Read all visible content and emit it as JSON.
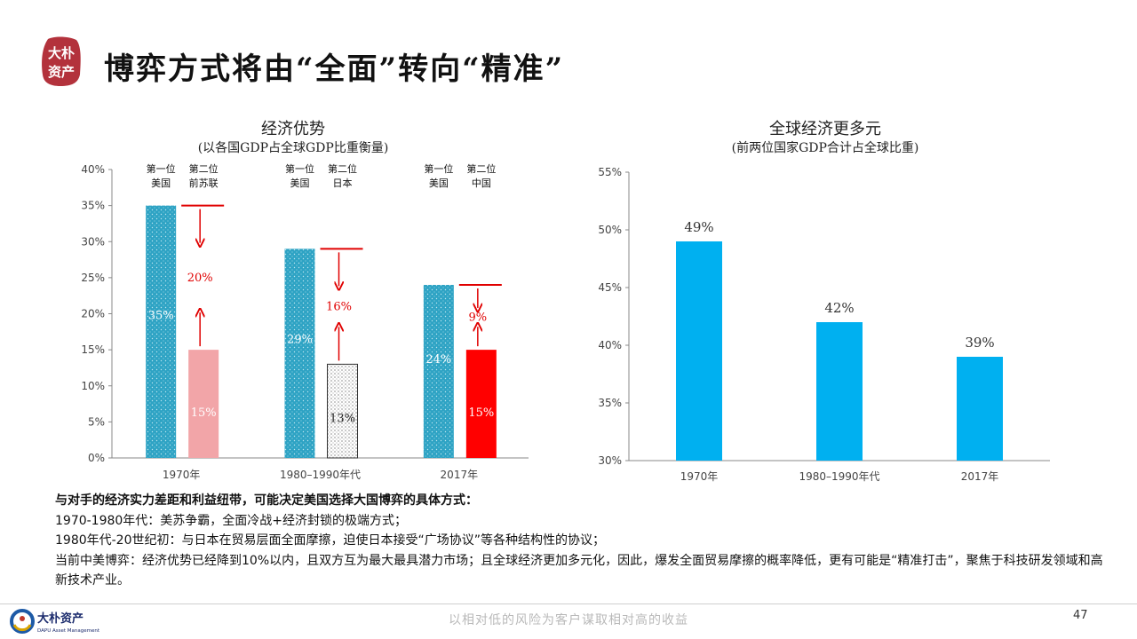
{
  "header": {
    "title": "博弈方式将由“全面”转向“精准”",
    "seal_text": [
      "大朴",
      "资产"
    ]
  },
  "left_chart": {
    "title": "经济优势",
    "subtitle": "(以各国GDP占全球GDP比重衡量)"
  },
  "right_chart": {
    "title": "全球经济更多元",
    "subtitle": "(前两位国家GDP合计占全球比重)"
  },
  "chart_data": [
    {
      "type": "bar",
      "title": "经济优势",
      "subtitle": "(以各国GDP占全球GDP比重衡量)",
      "categories": [
        "1970年",
        "1980–1990年代",
        "2017年"
      ],
      "ylim": [
        0,
        40
      ],
      "yticks": [
        "0%",
        "5%",
        "10%",
        "15%",
        "20%",
        "25%",
        "30%",
        "35%",
        "40%"
      ],
      "series": [
        {
          "name": "第一位",
          "countries": [
            "美国",
            "美国",
            "美国"
          ],
          "values": [
            35,
            29,
            24
          ],
          "labels": [
            "35%",
            "29%",
            "24%"
          ],
          "color": "#2ea3c4"
        },
        {
          "name": "第二位",
          "countries": [
            "前苏联",
            "日本",
            "中国"
          ],
          "values": [
            15,
            13,
            15
          ],
          "labels": [
            "15%",
            "13%",
            "15%"
          ],
          "colors": [
            "#f2a5a8",
            "#ffffff",
            "#ff0000"
          ]
        }
      ],
      "gap_labels": [
        "20%",
        "16%",
        "9%"
      ],
      "grid": false
    },
    {
      "type": "bar",
      "title": "全球经济更多元",
      "subtitle": "(前两位国家GDP合计占全球比重)",
      "categories": [
        "1970年",
        "1980–1990年代",
        "2017年"
      ],
      "values": [
        49,
        42,
        39
      ],
      "labels": [
        "49%",
        "42%",
        "39%"
      ],
      "ylim": [
        30,
        55
      ],
      "yticks": [
        "30%",
        "35%",
        "40%",
        "45%",
        "50%",
        "55%"
      ],
      "color": "#00b0f0",
      "grid": false
    }
  ],
  "body": {
    "lead": "与对手的经济实力差距和利益纽带，可能决定美国选择大国博弈的具体方式：",
    "lines": [
      "1970-1980年代：美苏争霸，全面冷战+经济封锁的极端方式；",
      "1980年代-20世纪初：与日本在贸易层面全面摩擦，迫使日本接受“广场协议”等各种结构性的协议；",
      "当前中美博弈：经济优势已经降到10%以内，且双方互为最大最具潜力市场；且全球经济更加多元化，因此，爆发全面贸易摩擦的概率降低，更有可能是“精准打击”，聚焦于科技研发领域和高新技术产业。"
    ]
  },
  "footer": {
    "logo_cn": "大朴资产",
    "logo_en": "DAPU Asset Management",
    "slogan": "以相对低的风险为客户谋取相对高的收益",
    "page": "47"
  }
}
